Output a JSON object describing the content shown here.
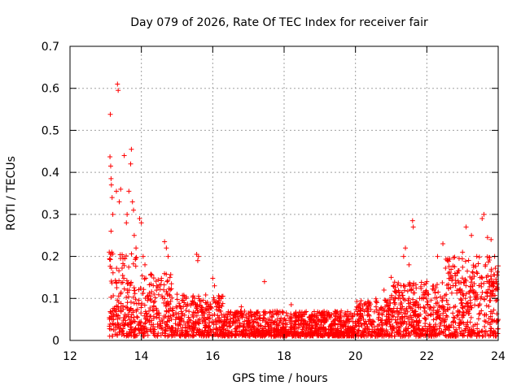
{
  "chart_data": {
    "type": "scatter",
    "title": "Day 079 of 2026, Rate Of TEC Index for receiver fair",
    "xlabel": "GPS time / hours",
    "ylabel": "ROTI / TECUs",
    "xlim": [
      12,
      24
    ],
    "ylim": [
      0,
      0.7
    ],
    "xticks": [
      12,
      14,
      16,
      18,
      20,
      22,
      24
    ],
    "yticks": [
      0,
      0.1,
      0.2,
      0.3,
      0.4,
      0.5,
      0.6,
      0.7
    ],
    "xtick_labels": [
      "12",
      "14",
      "16",
      "18",
      "20",
      "22",
      "24"
    ],
    "ytick_labels": [
      "0",
      "0.1",
      "0.2",
      "0.3",
      "0.4",
      "0.5",
      "0.6",
      "0.7"
    ],
    "grid": true,
    "marker": "+",
    "marker_color": "#ff0000",
    "series": [
      {
        "name": "ROTI",
        "points": [
          [
            13.13,
            0.538
          ],
          [
            13.12,
            0.437
          ],
          [
            13.14,
            0.415
          ],
          [
            13.15,
            0.385
          ],
          [
            13.16,
            0.37
          ],
          [
            13.18,
            0.34
          ],
          [
            13.2,
            0.3
          ],
          [
            13.15,
            0.26
          ],
          [
            13.17,
            0.21
          ],
          [
            13.1,
            0.21
          ],
          [
            13.33,
            0.61
          ],
          [
            13.35,
            0.595
          ],
          [
            13.3,
            0.355
          ],
          [
            13.38,
            0.33
          ],
          [
            13.42,
            0.36
          ],
          [
            13.52,
            0.44
          ],
          [
            13.6,
            0.3
          ],
          [
            13.58,
            0.28
          ],
          [
            13.65,
            0.355
          ],
          [
            13.7,
            0.42
          ],
          [
            13.72,
            0.455
          ],
          [
            13.75,
            0.33
          ],
          [
            13.78,
            0.31
          ],
          [
            13.8,
            0.25
          ],
          [
            13.85,
            0.22
          ],
          [
            13.95,
            0.29
          ],
          [
            14.0,
            0.28
          ],
          [
            14.05,
            0.2
          ],
          [
            14.1,
            0.18
          ],
          [
            14.2,
            0.1
          ],
          [
            14.35,
            0.08
          ],
          [
            14.5,
            0.06
          ],
          [
            14.65,
            0.235
          ],
          [
            14.7,
            0.22
          ],
          [
            14.75,
            0.2
          ],
          [
            14.8,
            0.15
          ],
          [
            15.0,
            0.11
          ],
          [
            15.2,
            0.09
          ],
          [
            15.35,
            0.05
          ],
          [
            15.55,
            0.205
          ],
          [
            15.58,
            0.19
          ],
          [
            15.6,
            0.2
          ],
          [
            15.7,
            0.06
          ],
          [
            16.0,
            0.148
          ],
          [
            16.05,
            0.13
          ],
          [
            16.2,
            0.07
          ],
          [
            16.4,
            0.05
          ],
          [
            16.6,
            0.06
          ],
          [
            16.8,
            0.08
          ],
          [
            17.0,
            0.04
          ],
          [
            17.2,
            0.06
          ],
          [
            17.45,
            0.14
          ],
          [
            17.6,
            0.05
          ],
          [
            17.8,
            0.07
          ],
          [
            18.0,
            0.03
          ],
          [
            18.2,
            0.085
          ],
          [
            18.4,
            0.06
          ],
          [
            18.6,
            0.04
          ],
          [
            18.8,
            0.05
          ],
          [
            19.0,
            0.03
          ],
          [
            19.2,
            0.06
          ],
          [
            19.4,
            0.04
          ],
          [
            19.6,
            0.07
          ],
          [
            19.8,
            0.05
          ],
          [
            20.0,
            0.04
          ],
          [
            20.2,
            0.06
          ],
          [
            20.4,
            0.05
          ],
          [
            20.6,
            0.09
          ],
          [
            20.8,
            0.12
          ],
          [
            21.0,
            0.15
          ],
          [
            21.2,
            0.1
          ],
          [
            21.35,
            0.2
          ],
          [
            21.4,
            0.22
          ],
          [
            21.5,
            0.18
          ],
          [
            21.6,
            0.285
          ],
          [
            21.62,
            0.27
          ],
          [
            21.8,
            0.1
          ],
          [
            22.0,
            0.14
          ],
          [
            22.2,
            0.12
          ],
          [
            22.3,
            0.2
          ],
          [
            22.45,
            0.23
          ],
          [
            22.6,
            0.16
          ],
          [
            22.8,
            0.13
          ],
          [
            23.0,
            0.21
          ],
          [
            23.1,
            0.27
          ],
          [
            23.25,
            0.25
          ],
          [
            23.4,
            0.2
          ],
          [
            23.55,
            0.29
          ],
          [
            23.6,
            0.3
          ],
          [
            23.7,
            0.245
          ],
          [
            23.8,
            0.24
          ],
          [
            23.9,
            0.2
          ],
          [
            23.95,
            0.14
          ],
          [
            24.0,
            0.05
          ]
        ]
      }
    ]
  }
}
